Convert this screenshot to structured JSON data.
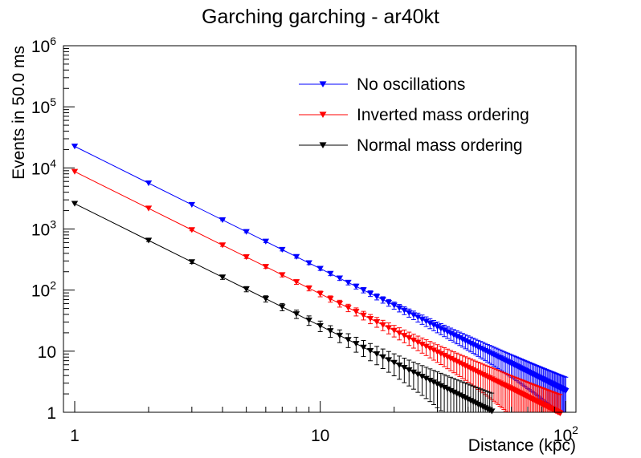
{
  "chart_data": {
    "type": "line",
    "title": "Garching garching - ar40kt",
    "xlabel": "Distance (kpc)",
    "ylabel": "Events in 50.0 ms",
    "xscale": "log",
    "yscale": "log",
    "xlim": [
      0.9,
      110
    ],
    "ylim": [
      1,
      1000000
    ],
    "grid": false,
    "legend_position": "top-right",
    "x_ticks": [
      {
        "value": 1,
        "label": "1"
      },
      {
        "value": 10,
        "label": "10"
      },
      {
        "value": 100,
        "label": "10",
        "exp": "2"
      }
    ],
    "y_ticks": [
      {
        "value": 1,
        "label": "1"
      },
      {
        "value": 10,
        "label": "10"
      },
      {
        "value": 100,
        "label": "10",
        "exp": "2"
      },
      {
        "value": 1000,
        "label": "10",
        "exp": "3"
      },
      {
        "value": 10000,
        "label": "10",
        "exp": "4"
      },
      {
        "value": 100000,
        "label": "10",
        "exp": "5"
      },
      {
        "value": 1000000,
        "label": "10",
        "exp": "6"
      }
    ],
    "x": [
      1,
      2,
      3,
      4,
      5,
      6,
      7,
      8,
      9,
      10,
      11,
      12,
      13,
      14,
      15,
      16,
      17,
      18,
      19,
      20,
      21,
      22,
      23,
      24,
      25,
      26,
      27,
      28,
      29,
      30,
      31,
      32,
      33,
      34,
      35,
      36,
      37,
      38,
      39,
      40,
      41,
      42,
      43,
      44,
      45,
      46,
      47,
      48,
      49,
      50,
      51,
      52,
      53,
      54,
      55,
      56,
      57,
      58,
      59,
      60,
      61,
      62,
      63,
      64,
      65,
      66,
      67,
      68,
      69,
      70,
      71,
      72,
      73,
      74,
      75,
      76,
      77,
      78,
      79,
      80,
      81,
      82,
      83,
      84,
      85,
      86,
      87,
      88,
      89,
      90,
      91,
      92,
      93,
      94,
      95,
      96,
      97,
      98,
      99,
      100
    ],
    "series": [
      {
        "name": "No oscillations",
        "color": "#0000ff",
        "at_1kpc": 22500,
        "x_max": 100
      },
      {
        "name": "Inverted mass ordering",
        "color": "#ff0000",
        "at_1kpc": 8700,
        "x_max": 95
      },
      {
        "name": "Normal mass ordering",
        "color": "#000000",
        "at_1kpc": 2600,
        "x_max": 50
      }
    ]
  }
}
